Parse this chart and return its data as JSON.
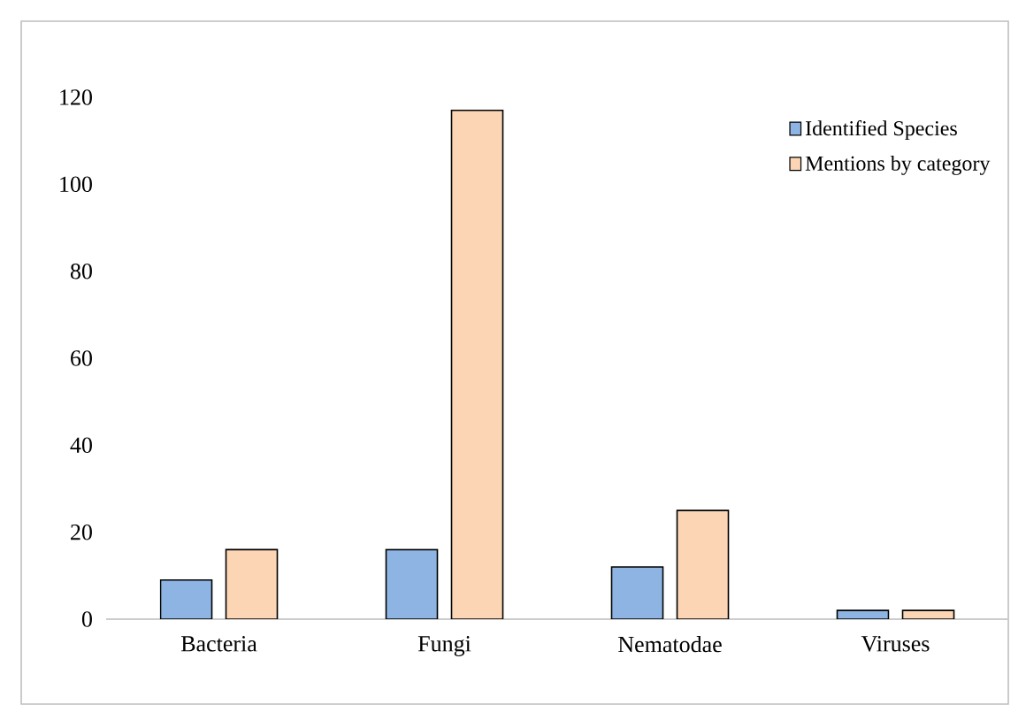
{
  "chart_data": {
    "type": "bar",
    "categories": [
      "Bacteria",
      "Fungi",
      "Nematodae",
      "Viruses"
    ],
    "series": [
      {
        "name": "Identified Species",
        "color": "#8db4e2",
        "values": [
          9,
          16,
          12,
          2
        ]
      },
      {
        "name": "Mentions by category",
        "color": "#fcd5b5",
        "values": [
          16,
          117,
          25,
          2
        ]
      }
    ],
    "ylim": [
      0,
      120
    ],
    "yticks": [
      0,
      20,
      40,
      60,
      80,
      100,
      120
    ],
    "legend": "top right"
  }
}
